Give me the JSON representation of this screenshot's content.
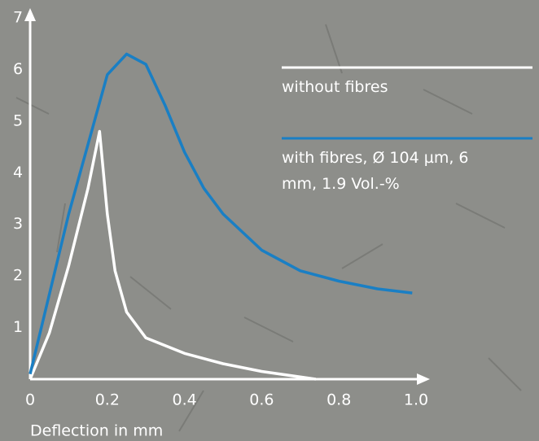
{
  "chart_data": {
    "type": "line",
    "x_label": "Deflection in mm",
    "xlim": [
      0,
      1
    ],
    "xticks": [
      0,
      0.2,
      0.4,
      0.6,
      0.8,
      {
        "value": 1,
        "label": "1.0"
      }
    ],
    "ylim": [
      0,
      7
    ],
    "yticks": [
      1,
      2,
      3,
      4,
      5,
      6,
      7
    ],
    "series": [
      {
        "name": "without fibres",
        "color": "#ffffff",
        "x": [
          0,
          0.05,
          0.1,
          0.15,
          0.18,
          0.2,
          0.22,
          0.25,
          0.3,
          0.4,
          0.5,
          0.6,
          0.74
        ],
        "values": [
          0,
          0.9,
          2.2,
          3.7,
          4.8,
          3.2,
          2.1,
          1.3,
          0.8,
          0.5,
          0.3,
          0.15,
          0
        ]
      },
      {
        "name": "with fibres, Ø 104 µm, 6 mm, 1.9 Vol.-%",
        "color": "#1a7fc4",
        "x": [
          0,
          0.1,
          0.2,
          0.25,
          0.3,
          0.35,
          0.4,
          0.45,
          0.5,
          0.6,
          0.7,
          0.8,
          0.9,
          0.99
        ],
        "values": [
          0.1,
          3.2,
          5.9,
          6.3,
          6.1,
          5.3,
          4.4,
          3.7,
          3.2,
          2.5,
          2.1,
          1.9,
          1.75,
          1.67
        ]
      }
    ]
  }
}
